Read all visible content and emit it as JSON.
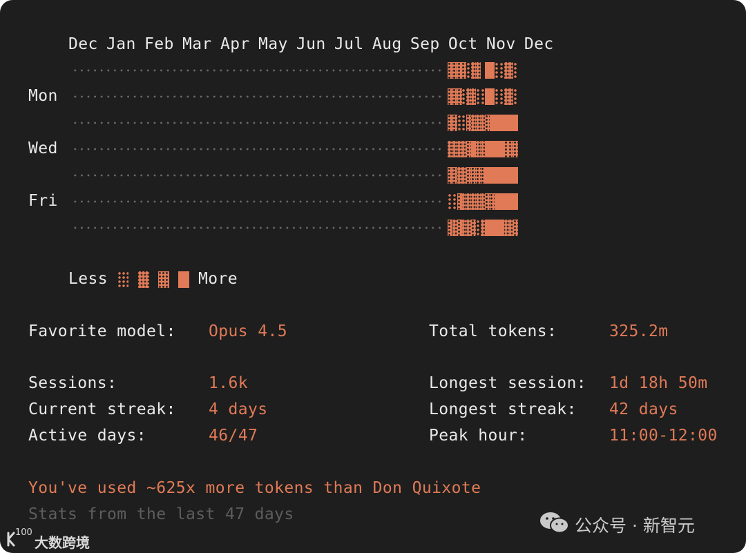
{
  "heatmap": {
    "months": "Dec Jan Feb Mar Apr May Jun Jul Aug Sep Oct Nov Dec",
    "day_labels": [
      "Mon",
      "Wed",
      "Fri"
    ],
    "rows": [
      [
        "none",
        "none",
        "none",
        "none",
        "none",
        "none",
        "none",
        "none",
        "none",
        "none",
        "none",
        "none",
        "none",
        "none",
        "none",
        "none",
        "none",
        "none",
        "none",
        "none",
        "none",
        "none",
        "none",
        "none",
        "none",
        "none",
        "none",
        "none",
        "none",
        "none",
        "none",
        "none",
        "none",
        "none",
        "none",
        "none",
        "none",
        "none",
        "none",
        "none",
        "none",
        "none",
        "none",
        "none",
        "none",
        "none",
        "none",
        "none",
        "none",
        "none",
        "none",
        "none",
        "none",
        "none",
        "none",
        "none",
        "none",
        "none",
        "none",
        "none",
        "none",
        "none",
        "none",
        "none",
        "none",
        "none",
        "none",
        "none",
        "none",
        "none",
        "none",
        "none",
        "none",
        "none",
        "none",
        "none",
        "none",
        "none",
        "none",
        "none",
        3,
        3,
        3,
        3,
        1,
        2,
        2,
        0,
        4,
        4,
        1,
        1,
        2,
        2,
        1
      ],
      [
        "none",
        "none",
        "none",
        "none",
        "none",
        "none",
        "none",
        "none",
        "none",
        "none",
        "none",
        "none",
        "none",
        "none",
        "none",
        "none",
        "none",
        "none",
        "none",
        "none",
        "none",
        "none",
        "none",
        "none",
        "none",
        "none",
        "none",
        "none",
        "none",
        "none",
        "none",
        "none",
        "none",
        "none",
        "none",
        "none",
        "none",
        "none",
        "none",
        "none",
        "none",
        "none",
        "none",
        "none",
        "none",
        "none",
        "none",
        "none",
        "none",
        "none",
        "none",
        "none",
        "none",
        "none",
        "none",
        "none",
        "none",
        "none",
        "none",
        "none",
        "none",
        "none",
        "none",
        "none",
        "none",
        "none",
        "none",
        "none",
        "none",
        "none",
        "none",
        "none",
        "none",
        "none",
        "none",
        "none",
        "none",
        "none",
        "none",
        "none",
        3,
        3,
        3,
        1,
        2,
        2,
        1,
        1,
        4,
        4,
        1,
        1,
        2,
        2,
        1
      ],
      [
        "none",
        "none",
        "none",
        "none",
        "none",
        "none",
        "none",
        "none",
        "none",
        "none",
        "none",
        "none",
        "none",
        "none",
        "none",
        "none",
        "none",
        "none",
        "none",
        "none",
        "none",
        "none",
        "none",
        "none",
        "none",
        "none",
        "none",
        "none",
        "none",
        "none",
        "none",
        "none",
        "none",
        "none",
        "none",
        "none",
        "none",
        "none",
        "none",
        "none",
        "none",
        "none",
        "none",
        "none",
        "none",
        "none",
        "none",
        "none",
        "none",
        "none",
        "none",
        "none",
        "none",
        "none",
        "none",
        "none",
        "none",
        "none",
        "none",
        "none",
        "none",
        "none",
        "none",
        "none",
        "none",
        "none",
        "none",
        "none",
        "none",
        "none",
        "none",
        "none",
        "none",
        "none",
        "none",
        "none",
        "none",
        "none",
        "none",
        "none",
        3,
        3,
        1,
        1,
        3,
        2,
        2,
        2,
        3,
        4,
        4,
        4,
        4,
        4,
        4
      ],
      [
        "none",
        "none",
        "none",
        "none",
        "none",
        "none",
        "none",
        "none",
        "none",
        "none",
        "none",
        "none",
        "none",
        "none",
        "none",
        "none",
        "none",
        "none",
        "none",
        "none",
        "none",
        "none",
        "none",
        "none",
        "none",
        "none",
        "none",
        "none",
        "none",
        "none",
        "none",
        "none",
        "none",
        "none",
        "none",
        "none",
        "none",
        "none",
        "none",
        "none",
        "none",
        "none",
        "none",
        "none",
        "none",
        "none",
        "none",
        "none",
        "none",
        "none",
        "none",
        "none",
        "none",
        "none",
        "none",
        "none",
        "none",
        "none",
        "none",
        "none",
        "none",
        "none",
        "none",
        "none",
        "none",
        "none",
        "none",
        "none",
        "none",
        "none",
        "none",
        "none",
        "none",
        "none",
        "none",
        "none",
        "none",
        "none",
        "none",
        "none",
        2,
        2,
        2,
        2,
        3,
        4,
        2,
        2,
        4,
        4,
        4,
        4,
        3,
        3,
        3
      ],
      [
        "none",
        "none",
        "none",
        "none",
        "none",
        "none",
        "none",
        "none",
        "none",
        "none",
        "none",
        "none",
        "none",
        "none",
        "none",
        "none",
        "none",
        "none",
        "none",
        "none",
        "none",
        "none",
        "none",
        "none",
        "none",
        "none",
        "none",
        "none",
        "none",
        "none",
        "none",
        "none",
        "none",
        "none",
        "none",
        "none",
        "none",
        "none",
        "none",
        "none",
        "none",
        "none",
        "none",
        "none",
        "none",
        "none",
        "none",
        "none",
        "none",
        "none",
        "none",
        "none",
        "none",
        "none",
        "none",
        "none",
        "none",
        "none",
        "none",
        "none",
        "none",
        "none",
        "none",
        "none",
        "none",
        "none",
        "none",
        "none",
        "none",
        "none",
        "none",
        "none",
        "none",
        "none",
        "none",
        "none",
        "none",
        "none",
        "none",
        "none",
        3,
        3,
        2,
        2,
        3,
        3,
        3,
        3,
        4,
        4,
        4,
        4,
        4,
        4,
        4
      ],
      [
        "none",
        "none",
        "none",
        "none",
        "none",
        "none",
        "none",
        "none",
        "none",
        "none",
        "none",
        "none",
        "none",
        "none",
        "none",
        "none",
        "none",
        "none",
        "none",
        "none",
        "none",
        "none",
        "none",
        "none",
        "none",
        "none",
        "none",
        "none",
        "none",
        "none",
        "none",
        "none",
        "none",
        "none",
        "none",
        "none",
        "none",
        "none",
        "none",
        "none",
        "none",
        "none",
        "none",
        "none",
        "none",
        "none",
        "none",
        "none",
        "none",
        "none",
        "none",
        "none",
        "none",
        "none",
        "none",
        "none",
        "none",
        "none",
        "none",
        "none",
        "none",
        "none",
        "none",
        "none",
        "none",
        "none",
        "none",
        "none",
        "none",
        "none",
        "none",
        "none",
        "none",
        "none",
        "none",
        "none",
        "none",
        "none",
        "none",
        "none",
        1,
        1,
        3,
        2,
        2,
        2,
        2,
        2,
        3,
        3,
        4,
        4,
        4,
        4,
        4
      ],
      [
        "none",
        "none",
        "none",
        "none",
        "none",
        "none",
        "none",
        "none",
        "none",
        "none",
        "none",
        "none",
        "none",
        "none",
        "none",
        "none",
        "none",
        "none",
        "none",
        "none",
        "none",
        "none",
        "none",
        "none",
        "none",
        "none",
        "none",
        "none",
        "none",
        "none",
        "none",
        "none",
        "none",
        "none",
        "none",
        "none",
        "none",
        "none",
        "none",
        "none",
        "none",
        "none",
        "none",
        "none",
        "none",
        "none",
        "none",
        "none",
        "none",
        "none",
        "none",
        "none",
        "none",
        "none",
        "none",
        "none",
        "none",
        "none",
        "none",
        "none",
        "none",
        "none",
        "none",
        "none",
        "none",
        "none",
        "none",
        "none",
        "none",
        "none",
        "none",
        "none",
        "none",
        "none",
        "none",
        "none",
        "none",
        "none",
        "none",
        "none",
        3,
        2,
        3,
        2,
        2,
        3,
        1,
        2,
        4,
        4,
        4,
        4,
        2,
        2,
        3
      ]
    ],
    "legend_less": "Less",
    "legend_more": "More",
    "accent_color": "#e07a57"
  },
  "stats": {
    "favorite_model_label": "Favorite model:",
    "favorite_model_value": "Opus 4.5",
    "total_tokens_label": "Total tokens:",
    "total_tokens_value": "325.2m",
    "sessions_label": "Sessions:",
    "sessions_value": "1.6k",
    "longest_session_label": "Longest session:",
    "longest_session_value": "1d 18h 50m",
    "current_streak_label": "Current streak:",
    "current_streak_value": "4 days",
    "longest_streak_label": "Longest streak:",
    "longest_streak_value": "42 days",
    "active_days_label": "Active days:",
    "active_days_value": "46/47",
    "peak_hour_label": "Peak hour:",
    "peak_hour_value": "11:00-12:00"
  },
  "footer": {
    "fun_fact": "You've used ~625x more tokens than Don Quixote",
    "stats_range": "Stats from the last 47 days"
  },
  "watermark": {
    "left_logo_text": "大数跨境",
    "left_logo_badge": "100",
    "right_text": "公众号 · 新智元"
  }
}
